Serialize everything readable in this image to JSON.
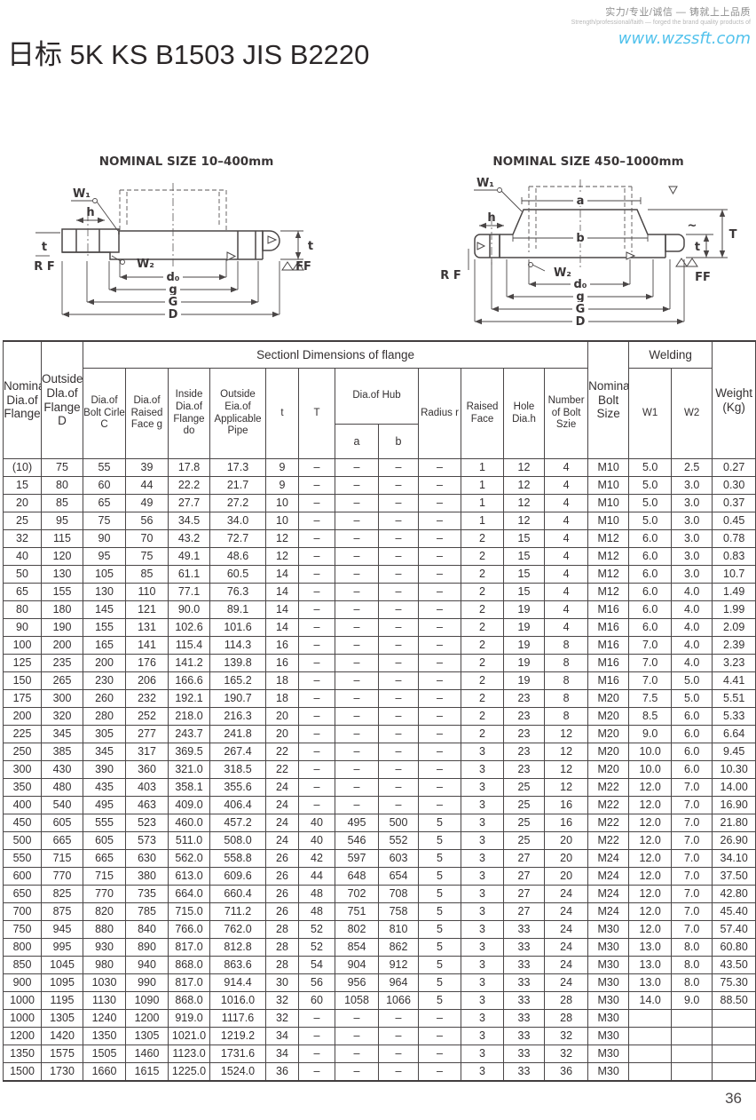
{
  "page": {
    "tagline_cn": "实力/专业/诚信 — 铸就上上品质",
    "tagline_en": "Strength/professional/faith — forged the brand quality products of",
    "website": "www.wzssft.com",
    "title": "日标 5K KS B1503 JIS B2220",
    "page_number": "36"
  },
  "diagrams": {
    "left": {
      "title": "NOMINAL SIZE 10–400mm",
      "w1": "W₁",
      "h": "h",
      "t_left": "t",
      "rf": "R F",
      "w2": "W₂",
      "d0": "d₀",
      "g": "g",
      "G": "G",
      "D": "D",
      "t_right": "t",
      "ff": "FF"
    },
    "right": {
      "title": "NOMINAL SIZE 450–1000mm",
      "w1": "W₁",
      "h": "h",
      "a": "a",
      "b": "b",
      "rf": "R F",
      "w2": "W₂",
      "d0": "d₀",
      "g": "g",
      "G": "G",
      "D": "D",
      "T": "T",
      "t": "t",
      "ff": "FF"
    }
  },
  "table": {
    "section_header": "Sectionl Dimensions of flange",
    "welding_header": "Welding",
    "col_nominal": "Nominal Dia.of Flange",
    "col_outside_d": "Outside Dla.of Flange D",
    "col_bolt_circle": "Dia.of Bolt Cirle C",
    "col_raised_face_g": "Dia.of Raised Face g",
    "col_inside_do": "Inside Dia.of Flange do",
    "col_pipe": "Outside Eia.of Applicable Pipe",
    "col_t_small": "t",
    "col_t_big": "T",
    "col_hub": "Dia.of Hub",
    "col_a": "a",
    "col_b": "b",
    "col_radius": "Radius r",
    "col_raised_face": "Raised Face",
    "col_hole": "Hole Dia.h",
    "col_num_bolt": "Number of Bolt Szie",
    "col_bolt_size": "Nominal Bolt Size",
    "col_w1": "W1",
    "col_w2": "W2",
    "col_weight": "Weight (Kg)",
    "rows": [
      [
        "(10)",
        "75",
        "55",
        "39",
        "17.8",
        "17.3",
        "9",
        "–",
        "–",
        "–",
        "–",
        "1",
        "12",
        "4",
        "M10",
        "5.0",
        "2.5",
        "0.27"
      ],
      [
        "15",
        "80",
        "60",
        "44",
        "22.2",
        "21.7",
        "9",
        "–",
        "–",
        "–",
        "–",
        "1",
        "12",
        "4",
        "M10",
        "5.0",
        "3.0",
        "0.30"
      ],
      [
        "20",
        "85",
        "65",
        "49",
        "27.7",
        "27.2",
        "10",
        "–",
        "–",
        "–",
        "–",
        "1",
        "12",
        "4",
        "M10",
        "5.0",
        "3.0",
        "0.37"
      ],
      [
        "25",
        "95",
        "75",
        "56",
        "34.5",
        "34.0",
        "10",
        "–",
        "–",
        "–",
        "–",
        "1",
        "12",
        "4",
        "M10",
        "5.0",
        "3.0",
        "0.45"
      ],
      [
        "32",
        "115",
        "90",
        "70",
        "43.2",
        "72.7",
        "12",
        "–",
        "–",
        "–",
        "–",
        "2",
        "15",
        "4",
        "M12",
        "6.0",
        "3.0",
        "0.78"
      ],
      [
        "40",
        "120",
        "95",
        "75",
        "49.1",
        "48.6",
        "12",
        "–",
        "–",
        "–",
        "–",
        "2",
        "15",
        "4",
        "M12",
        "6.0",
        "3.0",
        "0.83"
      ],
      [
        "50",
        "130",
        "105",
        "85",
        "61.1",
        "60.5",
        "14",
        "–",
        "–",
        "–",
        "–",
        "2",
        "15",
        "4",
        "M12",
        "6.0",
        "3.0",
        "10.7"
      ],
      [
        "65",
        "155",
        "130",
        "110",
        "77.1",
        "76.3",
        "14",
        "–",
        "–",
        "–",
        "–",
        "2",
        "15",
        "4",
        "M12",
        "6.0",
        "4.0",
        "1.49"
      ],
      [
        "80",
        "180",
        "145",
        "121",
        "90.0",
        "89.1",
        "14",
        "–",
        "–",
        "–",
        "–",
        "2",
        "19",
        "4",
        "M16",
        "6.0",
        "4.0",
        "1.99"
      ],
      [
        "90",
        "190",
        "155",
        "131",
        "102.6",
        "101.6",
        "14",
        "–",
        "–",
        "–",
        "–",
        "2",
        "19",
        "4",
        "M16",
        "6.0",
        "4.0",
        "2.09"
      ],
      [
        "100",
        "200",
        "165",
        "141",
        "115.4",
        "114.3",
        "16",
        "–",
        "–",
        "–",
        "–",
        "2",
        "19",
        "8",
        "M16",
        "7.0",
        "4.0",
        "2.39"
      ],
      [
        "125",
        "235",
        "200",
        "176",
        "141.2",
        "139.8",
        "16",
        "–",
        "–",
        "–",
        "–",
        "2",
        "19",
        "8",
        "M16",
        "7.0",
        "4.0",
        "3.23"
      ],
      [
        "150",
        "265",
        "230",
        "206",
        "166.6",
        "165.2",
        "18",
        "–",
        "–",
        "–",
        "–",
        "2",
        "19",
        "8",
        "M16",
        "7.0",
        "5.0",
        "4.41"
      ],
      [
        "175",
        "300",
        "260",
        "232",
        "192.1",
        "190.7",
        "18",
        "–",
        "–",
        "–",
        "–",
        "2",
        "23",
        "8",
        "M20",
        "7.5",
        "5.0",
        "5.51"
      ],
      [
        "200",
        "320",
        "280",
        "252",
        "218.0",
        "216.3",
        "20",
        "–",
        "–",
        "–",
        "–",
        "2",
        "23",
        "8",
        "M20",
        "8.5",
        "6.0",
        "5.33"
      ],
      [
        "225",
        "345",
        "305",
        "277",
        "243.7",
        "241.8",
        "20",
        "–",
        "–",
        "–",
        "–",
        "2",
        "23",
        "12",
        "M20",
        "9.0",
        "6.0",
        "6.64"
      ],
      [
        "250",
        "385",
        "345",
        "317",
        "369.5",
        "267.4",
        "22",
        "–",
        "–",
        "–",
        "–",
        "3",
        "23",
        "12",
        "M20",
        "10.0",
        "6.0",
        "9.45"
      ],
      [
        "300",
        "430",
        "390",
        "360",
        "321.0",
        "318.5",
        "22",
        "–",
        "–",
        "–",
        "–",
        "3",
        "23",
        "12",
        "M20",
        "10.0",
        "6.0",
        "10.30"
      ],
      [
        "350",
        "480",
        "435",
        "403",
        "358.1",
        "355.6",
        "24",
        "–",
        "–",
        "–",
        "–",
        "3",
        "25",
        "12",
        "M22",
        "12.0",
        "7.0",
        "14.00"
      ],
      [
        "400",
        "540",
        "495",
        "463",
        "409.0",
        "406.4",
        "24",
        "–",
        "–",
        "–",
        "–",
        "3",
        "25",
        "16",
        "M22",
        "12.0",
        "7.0",
        "16.90"
      ],
      [
        "450",
        "605",
        "555",
        "523",
        "460.0",
        "457.2",
        "24",
        "40",
        "495",
        "500",
        "5",
        "3",
        "25",
        "16",
        "M22",
        "12.0",
        "7.0",
        "21.80"
      ],
      [
        "500",
        "665",
        "605",
        "573",
        "511.0",
        "508.0",
        "24",
        "40",
        "546",
        "552",
        "5",
        "3",
        "25",
        "20",
        "M22",
        "12.0",
        "7.0",
        "26.90"
      ],
      [
        "550",
        "715",
        "665",
        "630",
        "562.0",
        "558.8",
        "26",
        "42",
        "597",
        "603",
        "5",
        "3",
        "27",
        "20",
        "M24",
        "12.0",
        "7.0",
        "34.10"
      ],
      [
        "600",
        "770",
        "715",
        "380",
        "613.0",
        "609.6",
        "26",
        "44",
        "648",
        "654",
        "5",
        "3",
        "27",
        "20",
        "M24",
        "12.0",
        "7.0",
        "37.50"
      ],
      [
        "650",
        "825",
        "770",
        "735",
        "664.0",
        "660.4",
        "26",
        "48",
        "702",
        "708",
        "5",
        "3",
        "27",
        "24",
        "M24",
        "12.0",
        "7.0",
        "42.80"
      ],
      [
        "700",
        "875",
        "820",
        "785",
        "715.0",
        "711.2",
        "26",
        "48",
        "751",
        "758",
        "5",
        "3",
        "27",
        "24",
        "M24",
        "12.0",
        "7.0",
        "45.40"
      ],
      [
        "750",
        "945",
        "880",
        "840",
        "766.0",
        "762.0",
        "28",
        "52",
        "802",
        "810",
        "5",
        "3",
        "33",
        "24",
        "M30",
        "12.0",
        "7.0",
        "57.40"
      ],
      [
        "800",
        "995",
        "930",
        "890",
        "817.0",
        "812.8",
        "28",
        "52",
        "854",
        "862",
        "5",
        "3",
        "33",
        "24",
        "M30",
        "13.0",
        "8.0",
        "60.80"
      ],
      [
        "850",
        "1045",
        "980",
        "940",
        "868.0",
        "863.6",
        "28",
        "54",
        "904",
        "912",
        "5",
        "3",
        "33",
        "24",
        "M30",
        "13.0",
        "8.0",
        "43.50"
      ],
      [
        "900",
        "1095",
        "1030",
        "990",
        "817.0",
        "914.4",
        "30",
        "56",
        "956",
        "964",
        "5",
        "3",
        "33",
        "24",
        "M30",
        "13.0",
        "8.0",
        "75.30"
      ],
      [
        "1000",
        "1195",
        "1130",
        "1090",
        "868.0",
        "1016.0",
        "32",
        "60",
        "1058",
        "1066",
        "5",
        "3",
        "33",
        "28",
        "M30",
        "14.0",
        "9.0",
        "88.50"
      ],
      [
        "1000",
        "1305",
        "1240",
        "1200",
        "919.0",
        "1117.6",
        "32",
        "–",
        "–",
        "–",
        "–",
        "3",
        "33",
        "28",
        "M30",
        "",
        "",
        ""
      ],
      [
        "1200",
        "1420",
        "1350",
        "1305",
        "1021.0",
        "1219.2",
        "34",
        "–",
        "–",
        "–",
        "–",
        "3",
        "33",
        "32",
        "M30",
        "",
        "",
        ""
      ],
      [
        "1350",
        "1575",
        "1505",
        "1460",
        "1123.0",
        "1731.6",
        "34",
        "–",
        "–",
        "–",
        "–",
        "3",
        "33",
        "32",
        "M30",
        "",
        "",
        ""
      ],
      [
        "1500",
        "1730",
        "1660",
        "1615",
        "1225.0",
        "1524.0",
        "36",
        "–",
        "–",
        "–",
        "–",
        "3",
        "33",
        "36",
        "M30",
        "",
        "",
        ""
      ]
    ]
  }
}
